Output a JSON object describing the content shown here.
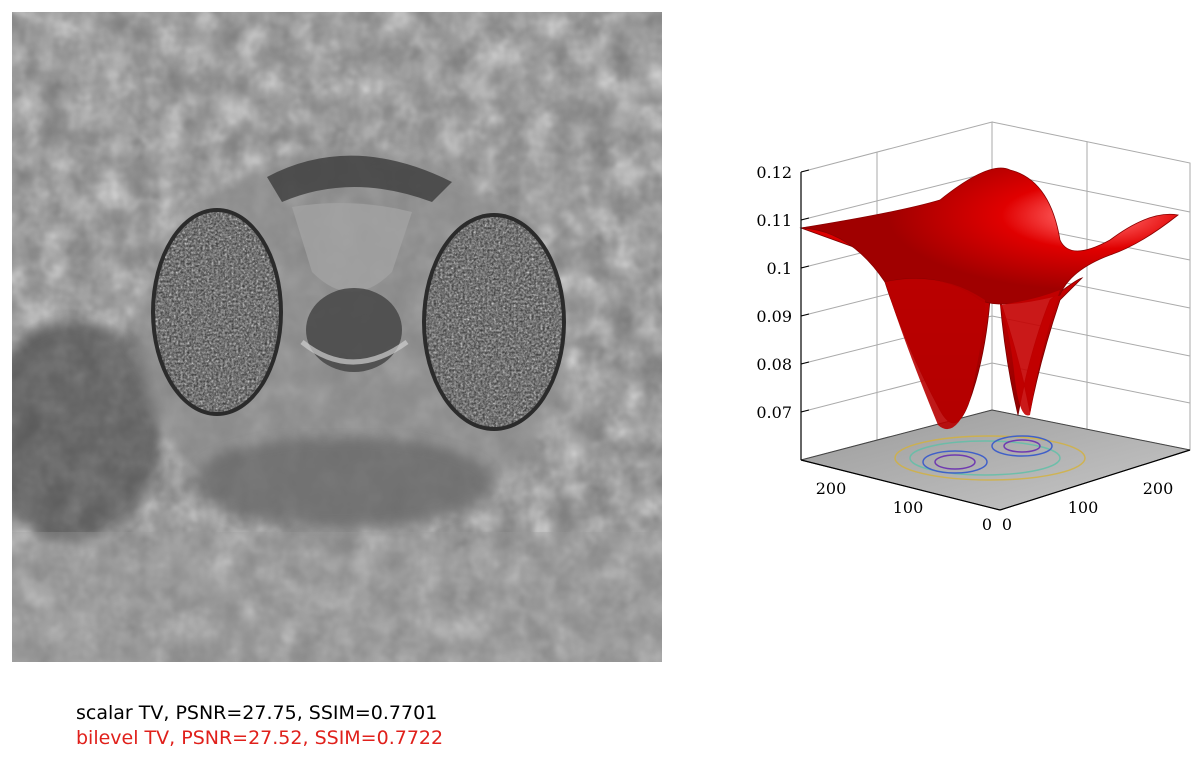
{
  "figure": {
    "captions": {
      "scalar": "scalar TV, PSNR=27.75, SSIM=0.7701",
      "bilevel": "bilevel TV, PSNR=27.52, SSIM=0.7722"
    },
    "colors": {
      "scalar_caption": "#000000",
      "bilevel_caption": "#e0201b",
      "surface": "#d00000",
      "grid": "#999999"
    },
    "image_description_icon": "denoised-grayscale-image"
  },
  "chart_data": {
    "type": "surface",
    "title": "",
    "xlabel": "",
    "ylabel": "",
    "zlabel": "",
    "z_ticks": [
      "0.07",
      "0.08",
      "0.09",
      "0.1",
      "0.11",
      "0.12"
    ],
    "x_ticks": [
      "0",
      "100",
      "200"
    ],
    "y_ticks": [
      "0",
      "100",
      "200"
    ],
    "zlim": [
      0.06,
      0.12
    ],
    "grid": true,
    "floor": "image with contour lines"
  }
}
